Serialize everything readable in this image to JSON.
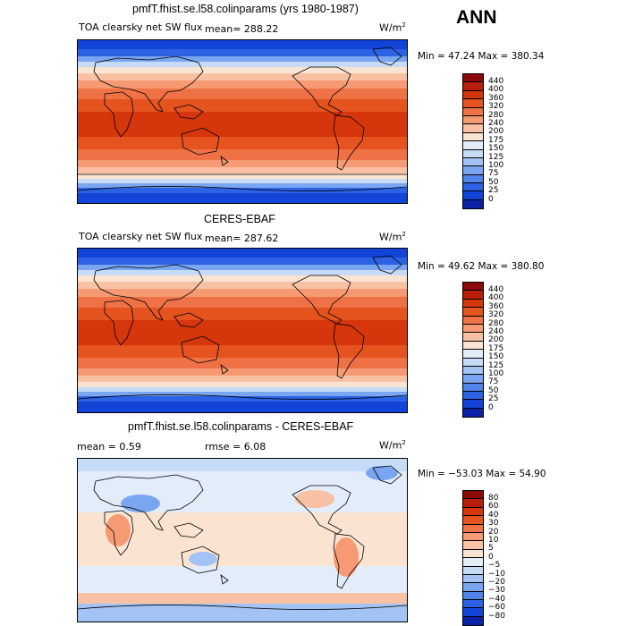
{
  "season": "ANN",
  "panels": [
    {
      "title": "pmfT.fhist.se.l58.colinparams (yrs 1980-1987)",
      "variable": "TOA clearsky net SW flux",
      "stat_left": "mean= 288.22",
      "stat_right": "",
      "units": "W/m",
      "units_exp": "2",
      "minmax": "Min =  47.24 Max = 380.34",
      "type": "field"
    },
    {
      "title": "CERES-EBAF",
      "variable": "TOA clearsky net SW flux",
      "stat_left": "mean= 287.62",
      "stat_right": "",
      "units": "W/m",
      "units_exp": "2",
      "minmax": "Min =  49.62 Max = 380.80",
      "type": "field"
    },
    {
      "title": "pmfT.fhist.se.l58.colinparams - CERES-EBAF",
      "variable": "mean =    0.59",
      "stat_left": "rmse =    6.08",
      "stat_right": "",
      "units": "W/m",
      "units_exp": "2",
      "minmax": "Min = −53.03 Max =  54.90",
      "type": "diff"
    }
  ],
  "colorbars": {
    "field": {
      "labels": [
        "440",
        "400",
        "360",
        "320",
        "280",
        "240",
        "200",
        "175",
        "150",
        "125",
        "100",
        "75",
        "50",
        "25",
        "0"
      ],
      "colors": [
        "#8c0a0a",
        "#b81e0a",
        "#d6360c",
        "#e5531e",
        "#ee7246",
        "#f59a72",
        "#f9c1a4",
        "#fbe3d2",
        "#e3edf9",
        "#c6dbf7",
        "#a3c3f5",
        "#7aa5f0",
        "#5184ea",
        "#2c62e4",
        "#1244d8",
        "#0a22a8"
      ]
    },
    "diff": {
      "labels": [
        "80",
        "60",
        "40",
        "30",
        "20",
        "10",
        "5",
        "0",
        "−5",
        "−10",
        "−20",
        "−30",
        "−40",
        "−60",
        "−80"
      ],
      "colors": [
        "#8c0a0a",
        "#b81e0a",
        "#d6360c",
        "#e5531e",
        "#ee7246",
        "#f59a72",
        "#f9c1a4",
        "#fbe3d2",
        "#e3edf9",
        "#c6dbf7",
        "#a3c3f5",
        "#7aa5f0",
        "#5184ea",
        "#2c62e4",
        "#1244d8",
        "#0a22a8"
      ]
    }
  }
}
